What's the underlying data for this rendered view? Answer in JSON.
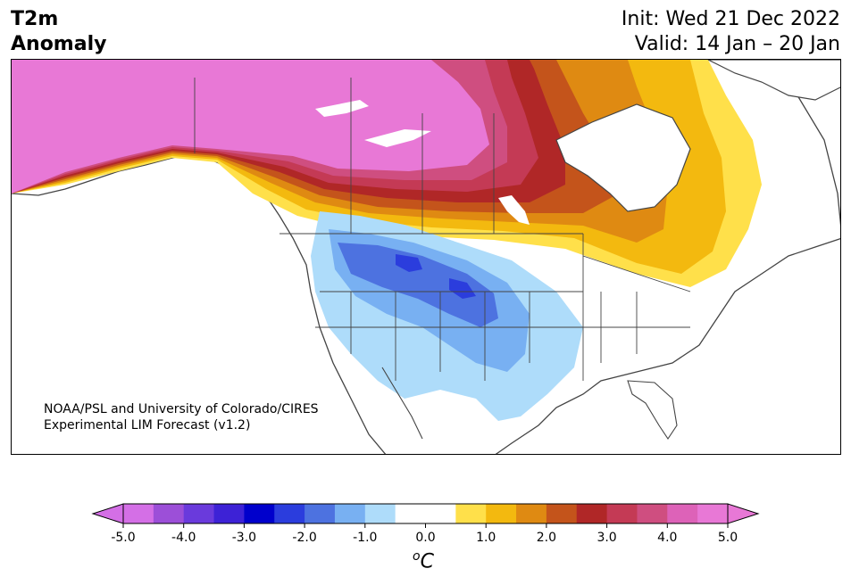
{
  "title": {
    "left_line1": "T2m",
    "left_line2": "Anomaly",
    "right_line1": "Init: Wed 21 Dec 2022",
    "right_line2": "Valid: 14 Jan – 20 Jan"
  },
  "credit": {
    "line1": "NOAA/PSL and University of Colorado/CIRES",
    "line2": "Experimental LIM Forecast (v1.2)"
  },
  "colorbar": {
    "unit_base": "C",
    "unit_sup": "o",
    "ticks": [
      "-5.0",
      "-4.0",
      "-3.0",
      "-2.0",
      "-1.0",
      "0.0",
      "1.0",
      "2.0",
      "3.0",
      "4.0",
      "5.0"
    ],
    "colors": [
      "#d46fe6",
      "#9c4fd8",
      "#6a3adc",
      "#3d22d6",
      "#0000cc",
      "#2b3ddd",
      "#4d72e0",
      "#78b0f2",
      "#aedcfa",
      "#ffffff",
      "#ffffff",
      "#ffe04a",
      "#f3b90f",
      "#df8a12",
      "#c4541b",
      "#b02727",
      "#c43a55",
      "#cf4e80",
      "#dd62b8",
      "#e878d6"
    ],
    "under_color": "#d46fe6",
    "over_color": "#e878d6",
    "range": [
      -5.0,
      5.0
    ]
  },
  "map_colors": {
    "pink": "#e878d6",
    "pink_mid": "#dd62b8",
    "rose": "#cf4e80",
    "crimson": "#c43a55",
    "red": "#b02727",
    "brick": "#c4541b",
    "orange": "#df8a12",
    "gold": "#f3b90f",
    "yellow": "#ffe04a",
    "light_blue": "#aedcfa",
    "sky": "#78b0f2",
    "blue": "#4d72e0",
    "royal": "#2b3ddd",
    "outline": "#444444"
  }
}
